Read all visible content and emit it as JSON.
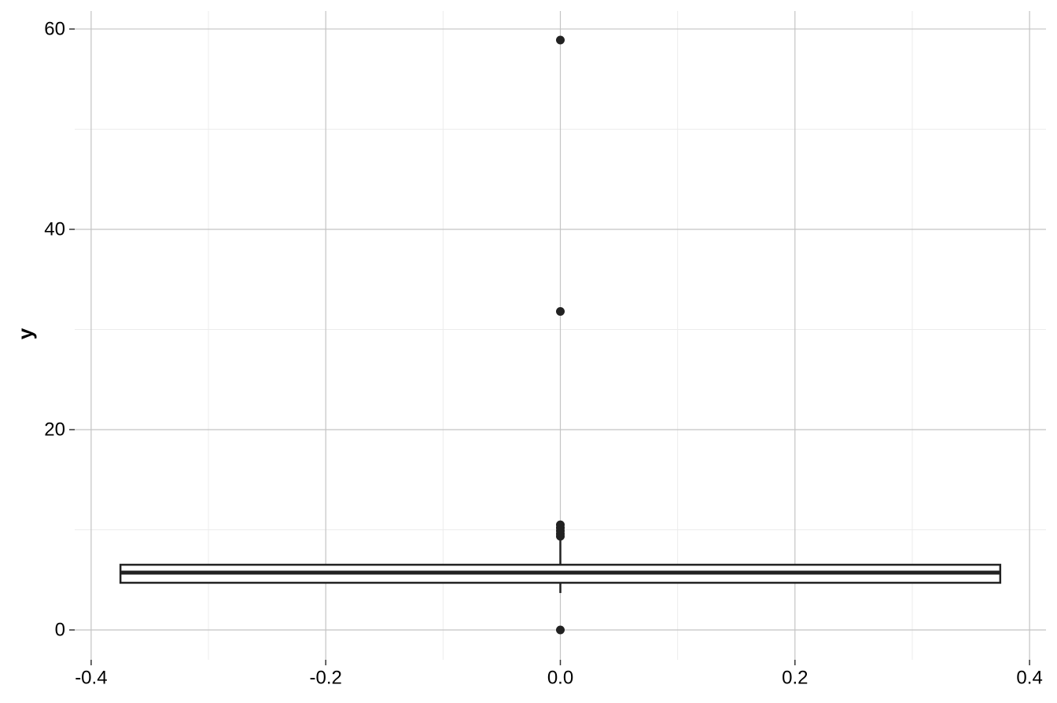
{
  "chart_data": {
    "type": "box",
    "y_label": "y",
    "xlim": [
      -0.414,
      0.414
    ],
    "xticks": [
      -0.4,
      -0.2,
      {
        "value": 0,
        "label": "0.0"
      },
      0.2,
      0.4
    ],
    "x_minor_grid": [
      -0.3,
      -0.1,
      0.1,
      0.3
    ],
    "ylim": [
      -2.98,
      61.8
    ],
    "yticks": [
      0,
      20,
      40,
      60
    ],
    "y_minor_grid": [
      10,
      30,
      50
    ],
    "grid": true,
    "color": "#222222",
    "fill": "#ffffff",
    "boxes": [
      {
        "x": 0,
        "x_range": [
          -0.375,
          0.375
        ],
        "q1": 4.71,
        "median": 5.73,
        "q3": 6.51,
        "whisker_low": 3.69,
        "whisker_high": 8.94,
        "outliers": [
          58.9,
          31.8,
          10.5,
          10.2,
          9.9,
          9.6,
          9.35,
          0
        ]
      }
    ]
  }
}
